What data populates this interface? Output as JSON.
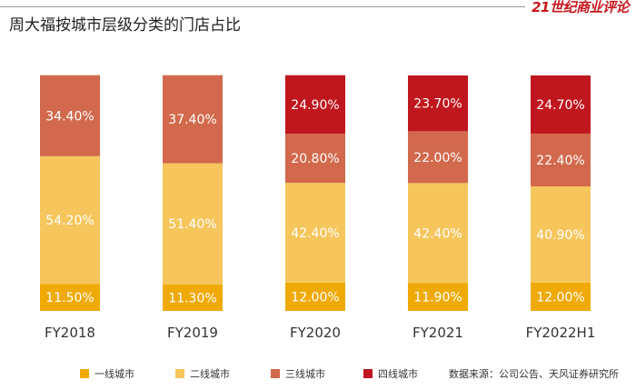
{
  "header": {
    "title": "周大福按城市层级分类的门店占比",
    "brand": "21世纪商业评论"
  },
  "source_note": "数据来源：公司公告、天风证券研究所",
  "colors": {
    "tier1": "#f0aa08",
    "tier2": "#f6c65c",
    "tier3": "#d2694c",
    "tier4": "#c0161e",
    "brand": "#c8161d"
  },
  "chart_data": {
    "type": "bar",
    "stacked": true,
    "categories": [
      "FY2018",
      "FY2019",
      "FY2020",
      "FY2021",
      "FY2022H1"
    ],
    "series": [
      {
        "name": "一线城市",
        "values": [
          11.5,
          11.3,
          12.0,
          11.9,
          12.0
        ],
        "labels": [
          "11.50%",
          "11.30%",
          "12.00%",
          "11.90%",
          "12.00%"
        ]
      },
      {
        "name": "二线城市",
        "values": [
          54.2,
          51.4,
          42.4,
          42.4,
          40.9
        ],
        "labels": [
          "54.20%",
          "51.40%",
          "42.40%",
          "42.40%",
          "40.90%"
        ]
      },
      {
        "name": "三线城市",
        "values": [
          34.4,
          37.4,
          20.8,
          22.0,
          22.4
        ],
        "labels": [
          "34.40%",
          "37.40%",
          "20.80%",
          "22.00%",
          "22.40%"
        ]
      },
      {
        "name": "四线城市",
        "values": [
          null,
          null,
          24.9,
          23.7,
          24.7
        ],
        "labels": [
          "",
          "",
          "24.90%",
          "23.70%",
          "24.70%"
        ]
      }
    ],
    "ylim": [
      0,
      100
    ],
    "grid": false,
    "legend_position": "bottom"
  }
}
